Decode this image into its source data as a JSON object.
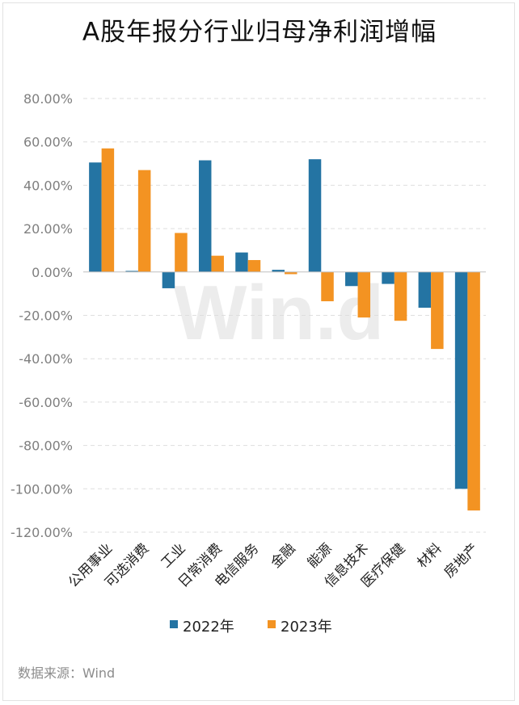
{
  "chart_data": {
    "type": "bar",
    "title": "A股年报分行业归母净利润增幅",
    "categories": [
      "公用事业",
      "可选消费",
      "工业",
      "日常消费",
      "电信服务",
      "金融",
      "能源",
      "信息技术",
      "医疗保健",
      "材料",
      "房地产"
    ],
    "series": [
      {
        "name": "2022年",
        "color": "#2474a3",
        "values": [
          50.5,
          0.5,
          -7.5,
          51.5,
          9.0,
          1.0,
          52.0,
          -6.5,
          -5.5,
          -16.5,
          -100.0
        ]
      },
      {
        "name": "2023年",
        "color": "#f39322",
        "values": [
          57.0,
          47.0,
          18.0,
          7.5,
          5.5,
          -1.0,
          -13.5,
          -21.0,
          -22.5,
          -35.5,
          -110.0
        ]
      }
    ],
    "ylim": [
      -120,
      80
    ],
    "yticks": [
      80,
      60,
      40,
      20,
      0,
      -20,
      -40,
      -60,
      -80,
      -100,
      -120
    ],
    "ytick_labels": [
      "80.00%",
      "60.00%",
      "40.00%",
      "20.00%",
      "0.00%",
      "-20.00%",
      "-40.00%",
      "-60.00%",
      "-80.00%",
      "-100.00%",
      "-120.00%"
    ],
    "xlabel": "",
    "ylabel": "",
    "legend_position": "bottom",
    "grid": true
  },
  "source_label": "数据来源：Wind",
  "watermark": "Win.d"
}
